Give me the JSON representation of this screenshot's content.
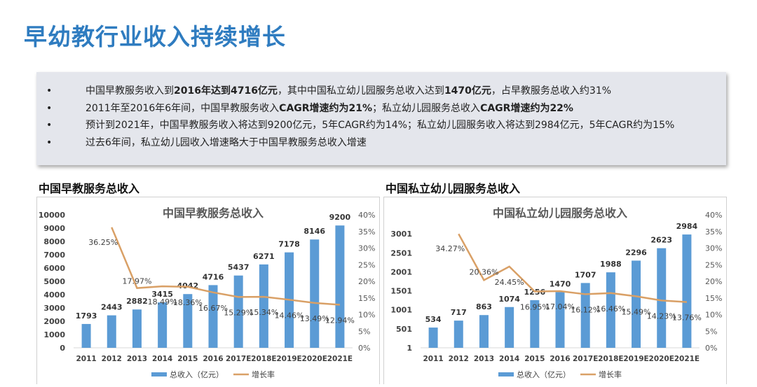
{
  "page_title": "早幼教行业收入持续增长",
  "bullets": [
    [
      {
        "t": "中国早教服务收入到",
        "b": false
      },
      {
        "t": "2016年达到4716亿元",
        "b": true
      },
      {
        "t": "，其中中国私立幼儿园服务总收入达到",
        "b": false
      },
      {
        "t": "1470亿元",
        "b": true
      },
      {
        "t": "，占早教服务总收入约31%",
        "b": false
      }
    ],
    [
      {
        "t": "2011年至2016年6年间，中国早教服务收入",
        "b": false
      },
      {
        "t": "CAGR增速约为21%",
        "b": true
      },
      {
        "t": "；私立幼儿园服务总收入",
        "b": false
      },
      {
        "t": "CAGR增速约为22%",
        "b": true
      }
    ],
    [
      {
        "t": "预计到2021年，中国早教服务收入将达到9200亿元，5年CAGR约为14%；私立幼儿园服务收入将达到2984亿元，5年CAGR约为15%",
        "b": false
      }
    ],
    [
      {
        "t": "过去6年间，私立幼儿园收入增速略大于中国早教服务总收入增速",
        "b": false
      }
    ]
  ],
  "left_subtitle": "中国早教服务总收入",
  "right_subtitle": "中国私立幼儿园服务总收入",
  "colors": {
    "title": "#2f7cc0",
    "bar": "#5b9bd5",
    "line": "#d9a066"
  },
  "chart_data": [
    {
      "type": "bar+line",
      "title": "中国早教服务总收入",
      "categories": [
        "2011",
        "2012",
        "2013",
        "2014",
        "2015",
        "2016",
        "2017E",
        "2018E",
        "2019E",
        "2020E",
        "2021E"
      ],
      "series": [
        {
          "name": "总收入（亿元）",
          "type": "bar",
          "axis": "left",
          "values": [
            1793,
            2443,
            2882,
            3415,
            4042,
            4716,
            5437,
            6271,
            7178,
            8146,
            9200
          ]
        },
        {
          "name": "增长率",
          "type": "line",
          "axis": "right",
          "values": [
            null,
            36.25,
            17.97,
            18.49,
            18.36,
            16.67,
            15.29,
            15.34,
            14.46,
            13.49,
            12.94
          ]
        }
      ],
      "left_axis": {
        "range": [
          0,
          10000
        ],
        "ticks": [
          "0",
          "1000",
          "2000",
          "3000",
          "4000",
          "5000",
          "6000",
          "7000",
          "8000",
          "9000",
          "10000"
        ]
      },
      "right_axis": {
        "range": [
          0,
          40
        ],
        "ticks": [
          "0%",
          "5%",
          "10%",
          "15%",
          "20%",
          "25%",
          "30%",
          "35%",
          "40%"
        ]
      },
      "legend": "bottom"
    },
    {
      "type": "bar+line",
      "title": "中国私立幼儿园服务总收入",
      "categories": [
        "2011",
        "2012",
        "2013",
        "2014",
        "2015",
        "2016",
        "2017E",
        "2018E",
        "2019E",
        "2020E",
        "2021E"
      ],
      "series": [
        {
          "name": "总收入（亿元）",
          "type": "bar",
          "axis": "left",
          "values": [
            534,
            717,
            863,
            1074,
            1256,
            1470,
            1707,
            1988,
            2296,
            2623,
            2984
          ]
        },
        {
          "name": "增长率",
          "type": "line",
          "axis": "right",
          "values": [
            null,
            34.27,
            20.36,
            24.45,
            16.95,
            17.04,
            16.12,
            16.46,
            15.49,
            14.23,
            13.76
          ]
        }
      ],
      "left_axis": {
        "range": [
          1,
          3501
        ],
        "ticks": [
          "1",
          "501",
          "1001",
          "1501",
          "2001",
          "2501",
          "3001"
        ]
      },
      "right_axis": {
        "range": [
          0,
          40
        ],
        "ticks": [
          "0%",
          "5%",
          "10%",
          "15%",
          "20%",
          "25%",
          "30%",
          "35%",
          "40%"
        ]
      },
      "legend": "bottom"
    }
  ]
}
